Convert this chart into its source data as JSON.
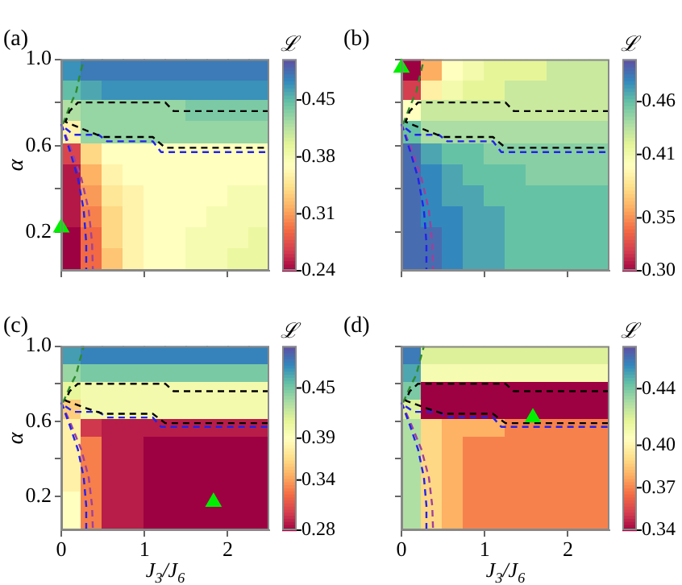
{
  "chart_data": [
    {
      "type": "heatmap",
      "title": "(a)",
      "ylabel": "α",
      "clabel": "ℒ",
      "tick_labels": "y",
      "grid": false,
      "legend": false,
      "xlim": [
        0,
        2.5
      ],
      "xticks": [
        0,
        1,
        2
      ],
      "ylim": [
        0.02,
        1.0
      ],
      "yticks": [
        {
          "value": 0.2,
          "label": "0.2"
        },
        {
          "value": 0.4,
          "label": null
        },
        {
          "value": 0.6,
          "label": "0.6"
        },
        {
          "value": 0.8,
          "label": null
        },
        {
          "value": 1.0,
          "label": "1.0"
        }
      ],
      "clim": [
        0.24,
        0.5
      ],
      "cticks": [
        0.24,
        0.31,
        0.38,
        0.45
      ],
      "x": [
        0.125,
        0.375,
        0.625,
        0.875,
        1.125,
        1.375,
        1.625,
        1.875,
        2.125,
        2.375
      ],
      "y": [
        0.95,
        0.85,
        0.76,
        0.66,
        0.56,
        0.46,
        0.36,
        0.27,
        0.17,
        0.07
      ],
      "cells": [
        [
          0.47,
          0.48,
          0.48,
          0.48,
          0.48,
          0.48,
          0.48,
          0.48,
          0.48,
          0.48
        ],
        [
          0.45,
          0.46,
          0.47,
          0.47,
          0.47,
          0.47,
          0.47,
          0.47,
          0.47,
          0.47
        ],
        [
          0.42,
          0.43,
          0.43,
          0.43,
          0.43,
          0.43,
          0.44,
          0.44,
          0.44,
          0.44
        ],
        [
          0.36,
          0.43,
          0.43,
          0.43,
          0.43,
          0.43,
          0.43,
          0.43,
          0.43,
          0.43
        ],
        [
          0.27,
          0.34,
          0.37,
          0.37,
          0.37,
          0.37,
          0.37,
          0.37,
          0.37,
          0.37
        ],
        [
          0.25,
          0.32,
          0.36,
          0.37,
          0.37,
          0.37,
          0.37,
          0.37,
          0.37,
          0.37
        ],
        [
          0.25,
          0.31,
          0.35,
          0.36,
          0.37,
          0.37,
          0.37,
          0.37,
          0.38,
          0.38
        ],
        [
          0.25,
          0.3,
          0.34,
          0.36,
          0.37,
          0.37,
          0.37,
          0.38,
          0.38,
          0.38
        ],
        [
          0.24,
          0.29,
          0.34,
          0.36,
          0.37,
          0.37,
          0.38,
          0.38,
          0.38,
          0.39
        ],
        [
          0.24,
          0.29,
          0.33,
          0.36,
          0.37,
          0.37,
          0.38,
          0.38,
          0.39,
          0.39
        ]
      ],
      "series": [
        {
          "type": "line",
          "color": "#000000",
          "line_style": "dashed",
          "x": [
            2.5,
            1.35,
            1.25,
            0.2,
            0.1,
            0.05,
            0.3,
            0.5,
            1.1,
            1.25,
            2.5
          ],
          "values": [
            0.76,
            0.76,
            0.8,
            0.8,
            0.76,
            0.71,
            0.67,
            0.64,
            0.64,
            0.59,
            0.59
          ]
        },
        {
          "type": "line",
          "color": "#2222ee",
          "line_style": "dashed",
          "x": [
            0.05,
            0.15,
            0.45,
            0.55,
            1.1,
            1.2,
            2.5
          ],
          "values": [
            0.68,
            0.65,
            0.65,
            0.62,
            0.62,
            0.57,
            0.57
          ]
        },
        {
          "type": "line",
          "color": "#2222ee",
          "line_style": "dashed",
          "x": [
            0,
            0.1,
            0.2,
            0.27,
            0.3,
            0.3
          ],
          "values": [
            0.7,
            0.58,
            0.45,
            0.3,
            0.15,
            0.02
          ]
        },
        {
          "type": "line",
          "color": "#a0409a",
          "line_style": "dashed",
          "x": [
            0,
            0.12,
            0.24,
            0.33,
            0.37,
            0.38
          ],
          "values": [
            0.7,
            0.58,
            0.45,
            0.3,
            0.15,
            0.02
          ]
        },
        {
          "type": "line",
          "color": "#2e8b2e",
          "line_style": "dashed",
          "x": [
            0.02,
            0.1,
            0.18,
            0.22,
            0.27
          ],
          "values": [
            0.7,
            0.78,
            0.85,
            0.92,
            1.0
          ]
        },
        {
          "type": "scatter",
          "color": "#00ee00",
          "marker": "triangle",
          "x": [
            0
          ],
          "values": [
            0.22
          ]
        }
      ]
    },
    {
      "type": "heatmap",
      "title": "(b)",
      "clabel": "ℒ",
      "tick_labels": false,
      "grid": false,
      "legend": false,
      "xlim": [
        0,
        2.5
      ],
      "xticks": [
        0,
        1,
        2
      ],
      "ylim": [
        0.02,
        1.0
      ],
      "yticks": [
        0.2,
        0.4,
        0.6,
        0.8,
        1.0
      ],
      "clim": [
        0.3,
        0.5
      ],
      "cticks": [
        {
          "value": 0.3,
          "label": "0.30"
        },
        0.35,
        0.41,
        0.46
      ],
      "x": [
        0.125,
        0.375,
        0.625,
        0.875,
        1.125,
        1.375,
        1.625,
        1.875,
        2.125,
        2.375
      ],
      "y": [
        0.95,
        0.85,
        0.76,
        0.66,
        0.56,
        0.46,
        0.36,
        0.27,
        0.17,
        0.07
      ],
      "cells": [
        [
          0.3,
          0.36,
          0.4,
          0.41,
          0.42,
          0.42,
          0.42,
          0.43,
          0.43,
          0.43
        ],
        [
          0.32,
          0.39,
          0.41,
          0.42,
          0.42,
          0.43,
          0.43,
          0.43,
          0.43,
          0.43
        ],
        [
          0.4,
          0.43,
          0.43,
          0.43,
          0.43,
          0.43,
          0.43,
          0.43,
          0.43,
          0.43
        ],
        [
          0.46,
          0.44,
          0.44,
          0.44,
          0.44,
          0.44,
          0.44,
          0.44,
          0.44,
          0.44
        ],
        [
          0.49,
          0.47,
          0.46,
          0.46,
          0.45,
          0.45,
          0.45,
          0.45,
          0.45,
          0.45
        ],
        [
          0.49,
          0.48,
          0.47,
          0.46,
          0.46,
          0.46,
          0.45,
          0.45,
          0.45,
          0.45
        ],
        [
          0.49,
          0.48,
          0.47,
          0.47,
          0.46,
          0.46,
          0.46,
          0.46,
          0.46,
          0.46
        ],
        [
          0.49,
          0.48,
          0.48,
          0.47,
          0.47,
          0.46,
          0.46,
          0.46,
          0.46,
          0.46
        ],
        [
          0.49,
          0.49,
          0.48,
          0.47,
          0.47,
          0.46,
          0.46,
          0.46,
          0.46,
          0.46
        ],
        [
          0.49,
          0.49,
          0.48,
          0.47,
          0.47,
          0.46,
          0.46,
          0.46,
          0.46,
          0.46
        ]
      ],
      "series": [
        {
          "type": "line",
          "color": "#000000",
          "line_style": "dashed",
          "x": [
            2.5,
            1.35,
            1.25,
            0.2,
            0.1,
            0.05,
            0.3,
            0.5,
            1.1,
            1.25,
            2.5
          ],
          "values": [
            0.76,
            0.76,
            0.8,
            0.8,
            0.76,
            0.71,
            0.67,
            0.64,
            0.64,
            0.59,
            0.59
          ]
        },
        {
          "type": "line",
          "color": "#2222ee",
          "line_style": "dashed",
          "x": [
            0.05,
            0.15,
            0.45,
            0.55,
            1.1,
            1.2,
            2.5
          ],
          "values": [
            0.68,
            0.65,
            0.65,
            0.62,
            0.62,
            0.57,
            0.57
          ]
        },
        {
          "type": "line",
          "color": "#2222ee",
          "line_style": "dashed",
          "x": [
            0,
            0.1,
            0.2,
            0.27,
            0.3,
            0.3
          ],
          "values": [
            0.7,
            0.58,
            0.45,
            0.3,
            0.15,
            0.02
          ]
        },
        {
          "type": "line",
          "color": "#a0409a",
          "line_style": "dashed",
          "x": [
            0,
            0.12,
            0.24,
            0.33,
            0.37,
            0.38
          ],
          "values": [
            0.7,
            0.58,
            0.45,
            0.3,
            0.15,
            0.02
          ]
        },
        {
          "type": "line",
          "color": "#2e8b2e",
          "line_style": "dashed",
          "x": [
            0.02,
            0.1,
            0.18,
            0.22,
            0.27
          ],
          "values": [
            0.7,
            0.78,
            0.85,
            0.92,
            1.0
          ]
        },
        {
          "type": "scatter",
          "color": "#00ee00",
          "marker": "triangle",
          "x": [
            0
          ],
          "values": [
            0.96
          ]
        }
      ]
    },
    {
      "type": "heatmap",
      "title": "(c)",
      "xlabel": "J$_{3}$/J$_{6}$",
      "ylabel": "α",
      "clabel": "ℒ",
      "grid": false,
      "legend": false,
      "xlim": [
        0,
        2.5
      ],
      "xticks": [
        0,
        1,
        2
      ],
      "ylim": [
        0.02,
        1.0
      ],
      "yticks": [
        {
          "value": 0.2,
          "label": "0.2"
        },
        {
          "value": 0.4,
          "label": null
        },
        {
          "value": 0.6,
          "label": "0.6"
        },
        {
          "value": 0.8,
          "label": null
        },
        {
          "value": 1.0,
          "label": "1.0"
        }
      ],
      "clim": [
        0.28,
        0.5
      ],
      "cticks": [
        0.28,
        0.34,
        0.39,
        0.45
      ],
      "x": [
        0.125,
        0.375,
        0.625,
        0.875,
        1.125,
        1.375,
        1.625,
        1.875,
        2.125,
        2.375
      ],
      "y": [
        0.95,
        0.85,
        0.76,
        0.66,
        0.56,
        0.46,
        0.36,
        0.27,
        0.17,
        0.07
      ],
      "cells": [
        [
          0.47,
          0.48,
          0.48,
          0.48,
          0.48,
          0.48,
          0.48,
          0.48,
          0.48,
          0.48
        ],
        [
          0.44,
          0.45,
          0.45,
          0.45,
          0.45,
          0.45,
          0.45,
          0.45,
          0.45,
          0.45
        ],
        [
          0.41,
          0.4,
          0.4,
          0.4,
          0.4,
          0.4,
          0.4,
          0.4,
          0.4,
          0.4
        ],
        [
          0.36,
          0.4,
          0.4,
          0.4,
          0.4,
          0.4,
          0.4,
          0.4,
          0.4,
          0.4
        ],
        [
          0.38,
          0.3,
          0.29,
          0.29,
          0.29,
          0.29,
          0.29,
          0.29,
          0.29,
          0.29
        ],
        [
          0.38,
          0.33,
          0.29,
          0.29,
          0.28,
          0.28,
          0.28,
          0.28,
          0.28,
          0.28
        ],
        [
          0.38,
          0.33,
          0.29,
          0.29,
          0.28,
          0.28,
          0.28,
          0.28,
          0.28,
          0.28
        ],
        [
          0.38,
          0.33,
          0.29,
          0.29,
          0.28,
          0.28,
          0.28,
          0.28,
          0.28,
          0.28
        ],
        [
          0.39,
          0.33,
          0.29,
          0.29,
          0.28,
          0.28,
          0.28,
          0.28,
          0.28,
          0.28
        ],
        [
          0.39,
          0.33,
          0.29,
          0.29,
          0.28,
          0.28,
          0.28,
          0.28,
          0.28,
          0.28
        ]
      ],
      "series": [
        {
          "type": "line",
          "color": "#000000",
          "line_style": "dashed",
          "x": [
            2.5,
            1.35,
            1.25,
            0.2,
            0.1,
            0.05,
            0.3,
            0.5,
            1.1,
            1.25,
            2.5
          ],
          "values": [
            0.76,
            0.76,
            0.8,
            0.8,
            0.76,
            0.71,
            0.67,
            0.64,
            0.64,
            0.59,
            0.59
          ]
        },
        {
          "type": "line",
          "color": "#2222ee",
          "line_style": "dashed",
          "x": [
            0.05,
            0.15,
            0.45,
            0.55,
            1.1,
            1.2,
            2.5
          ],
          "values": [
            0.68,
            0.65,
            0.65,
            0.62,
            0.62,
            0.57,
            0.57
          ]
        },
        {
          "type": "line",
          "color": "#2222ee",
          "line_style": "dashed",
          "x": [
            0,
            0.1,
            0.2,
            0.27,
            0.3,
            0.3
          ],
          "values": [
            0.7,
            0.58,
            0.45,
            0.3,
            0.15,
            0.02
          ]
        },
        {
          "type": "line",
          "color": "#a0409a",
          "line_style": "dashed",
          "x": [
            0,
            0.12,
            0.24,
            0.33,
            0.37,
            0.38
          ],
          "values": [
            0.7,
            0.58,
            0.45,
            0.3,
            0.15,
            0.02
          ]
        },
        {
          "type": "line",
          "color": "#2e8b2e",
          "line_style": "dashed",
          "x": [
            0.02,
            0.1,
            0.18,
            0.22,
            0.27
          ],
          "values": [
            0.7,
            0.78,
            0.85,
            0.92,
            1.0
          ]
        },
        {
          "type": "scatter",
          "color": "#00ee00",
          "marker": "triangle",
          "x": [
            1.83
          ],
          "values": [
            0.17
          ]
        }
      ]
    },
    {
      "type": "heatmap",
      "title": "(d)",
      "xlabel": "J$_{3}$/J$_{6}$",
      "clabel": "ℒ",
      "tick_labels": "x",
      "grid": false,
      "legend": false,
      "xlim": [
        0,
        2.5
      ],
      "xticks": [
        0,
        1,
        2
      ],
      "ylim": [
        0.02,
        1.0
      ],
      "yticks": [
        0.2,
        0.4,
        0.6,
        0.8,
        1.0
      ],
      "clim": [
        0.34,
        0.47
      ],
      "cticks": [
        0.34,
        0.37,
        {
          "value": 0.4,
          "label": "0.40"
        },
        0.44
      ],
      "x": [
        0.125,
        0.375,
        0.625,
        0.875,
        1.125,
        1.375,
        1.625,
        1.875,
        2.125,
        2.375
      ],
      "y": [
        0.95,
        0.85,
        0.76,
        0.66,
        0.56,
        0.46,
        0.36,
        0.27,
        0.17,
        0.07
      ],
      "cells": [
        [
          0.46,
          0.42,
          0.42,
          0.42,
          0.42,
          0.42,
          0.42,
          0.42,
          0.42,
          0.42
        ],
        [
          0.45,
          0.41,
          0.41,
          0.41,
          0.41,
          0.41,
          0.41,
          0.41,
          0.41,
          0.41
        ],
        [
          0.44,
          0.34,
          0.34,
          0.34,
          0.34,
          0.34,
          0.34,
          0.34,
          0.34,
          0.34
        ],
        [
          0.42,
          0.34,
          0.34,
          0.34,
          0.34,
          0.34,
          0.34,
          0.34,
          0.34,
          0.34
        ],
        [
          0.43,
          0.39,
          0.38,
          0.38,
          0.38,
          0.37,
          0.37,
          0.37,
          0.37,
          0.37
        ],
        [
          0.43,
          0.39,
          0.38,
          0.37,
          0.37,
          0.37,
          0.37,
          0.37,
          0.37,
          0.37
        ],
        [
          0.43,
          0.39,
          0.38,
          0.37,
          0.37,
          0.37,
          0.37,
          0.37,
          0.37,
          0.37
        ],
        [
          0.43,
          0.39,
          0.38,
          0.37,
          0.37,
          0.37,
          0.37,
          0.37,
          0.37,
          0.37
        ],
        [
          0.43,
          0.39,
          0.38,
          0.37,
          0.37,
          0.37,
          0.37,
          0.37,
          0.37,
          0.37
        ],
        [
          0.43,
          0.39,
          0.38,
          0.37,
          0.37,
          0.37,
          0.37,
          0.37,
          0.37,
          0.37
        ]
      ],
      "series": [
        {
          "type": "line",
          "color": "#000000",
          "line_style": "dashed",
          "x": [
            2.5,
            1.35,
            1.25,
            0.2,
            0.1,
            0.05,
            0.3,
            0.5,
            1.1,
            1.25,
            2.5
          ],
          "values": [
            0.76,
            0.76,
            0.8,
            0.8,
            0.76,
            0.71,
            0.67,
            0.64,
            0.64,
            0.59,
            0.59
          ]
        },
        {
          "type": "line",
          "color": "#2222ee",
          "line_style": "dashed",
          "x": [
            0.05,
            0.15,
            0.45,
            0.55,
            1.1,
            1.2,
            2.5
          ],
          "values": [
            0.68,
            0.65,
            0.65,
            0.62,
            0.62,
            0.57,
            0.57
          ]
        },
        {
          "type": "line",
          "color": "#2222ee",
          "line_style": "dashed",
          "x": [
            0,
            0.1,
            0.2,
            0.27,
            0.3,
            0.3
          ],
          "values": [
            0.7,
            0.58,
            0.45,
            0.3,
            0.15,
            0.02
          ]
        },
        {
          "type": "line",
          "color": "#a0409a",
          "line_style": "dashed",
          "x": [
            0,
            0.12,
            0.24,
            0.33,
            0.37,
            0.38
          ],
          "values": [
            0.7,
            0.58,
            0.45,
            0.3,
            0.15,
            0.02
          ]
        },
        {
          "type": "line",
          "color": "#2e8b2e",
          "line_style": "dashed",
          "x": [
            0.02,
            0.1,
            0.18,
            0.22,
            0.27
          ],
          "values": [
            0.7,
            0.78,
            0.85,
            0.92,
            1.0
          ]
        },
        {
          "type": "scatter",
          "color": "#00ee00",
          "marker": "triangle",
          "x": [
            1.58
          ],
          "values": [
            0.62
          ]
        }
      ]
    }
  ]
}
